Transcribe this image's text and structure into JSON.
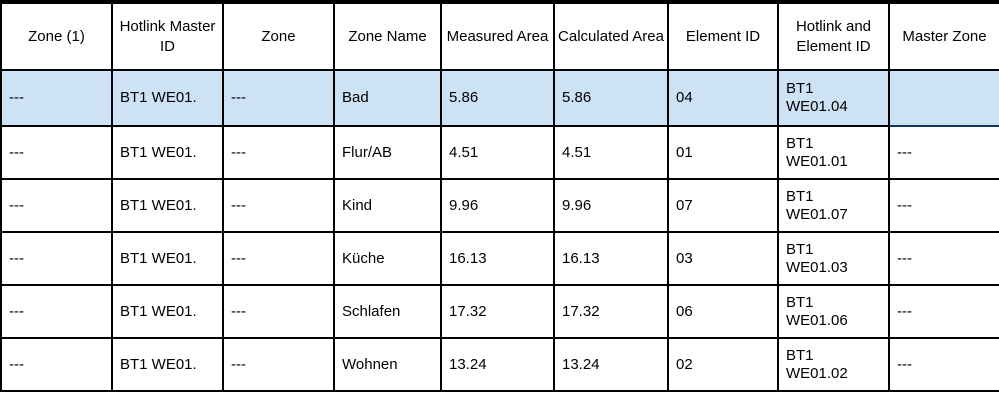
{
  "table": {
    "headers": [
      "Zone (1)",
      "Hotlink Master ID",
      "Zone",
      "Zone Name",
      "Measured Area",
      "Calculated Area",
      "Element ID",
      "Hotlink and Element ID",
      "Master Zone"
    ],
    "rows": [
      {
        "cells": [
          "---",
          "BT1 WE01.",
          "---",
          "Bad",
          "5.86",
          "5.86",
          "04",
          "BT1\nWE01.04",
          "---"
        ],
        "highlighted": true,
        "selected_cell": "Master Zone"
      },
      {
        "cells": [
          "---",
          "BT1 WE01.",
          "---",
          "Flur/AB",
          "4.51",
          "4.51",
          "01",
          "BT1\nWE01.01",
          "---"
        ],
        "highlighted": false,
        "selected_cell": null
      },
      {
        "cells": [
          "---",
          "BT1 WE01.",
          "---",
          "Kind",
          "9.96",
          "9.96",
          "07",
          "BT1\nWE01.07",
          "---"
        ],
        "highlighted": false,
        "selected_cell": null
      },
      {
        "cells": [
          "---",
          "BT1 WE01.",
          "---",
          "Küche",
          "16.13",
          "16.13",
          "03",
          "BT1\nWE01.03",
          "---"
        ],
        "highlighted": false,
        "selected_cell": null
      },
      {
        "cells": [
          "---",
          "BT1 WE01.",
          "---",
          "Schlafen",
          "17.32",
          "17.32",
          "06",
          "BT1\nWE01.06",
          "---"
        ],
        "highlighted": false,
        "selected_cell": null
      },
      {
        "cells": [
          "---",
          "BT1 WE01.",
          "---",
          "Wohnen",
          "13.24",
          "13.24",
          "02",
          "BT1\nWE01.02",
          "---"
        ],
        "highlighted": false,
        "selected_cell": null
      }
    ]
  },
  "colors": {
    "selected_cell": "#0878d4",
    "selected_border": "#16365c",
    "selected_text": "#d2e8fa",
    "highlight_row": "#cde2f5",
    "grid_border": "#000000"
  }
}
